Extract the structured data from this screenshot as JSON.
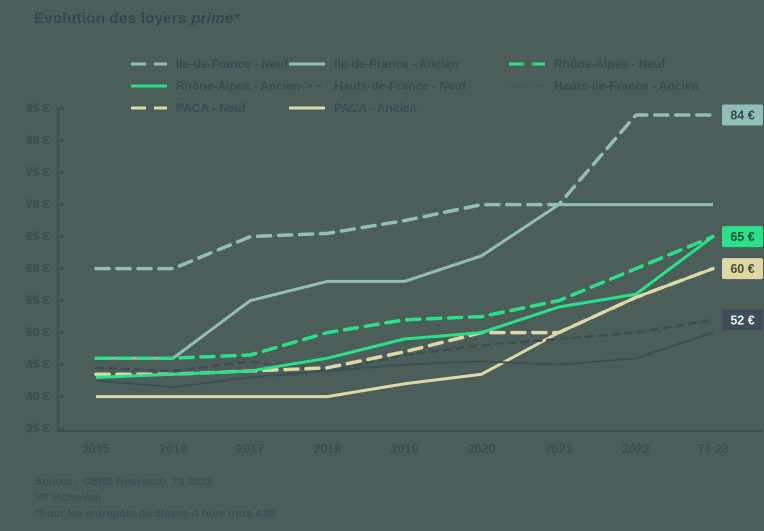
{
  "title": {
    "main": "Evolution des loyers ",
    "emphasis": "prime*"
  },
  "colors": {
    "background": "#4b5e59",
    "title_text": "#35474f",
    "axis": "#3d4e55",
    "tick_text": "#3d4e55",
    "legend_text": "#3a4c54",
    "footer_text": "#3e5058",
    "idf": "#8fbfb6",
    "rhone_alpes": "#2ae188",
    "hauts_de_france": "#3d4e55",
    "paca": "#ded8a4"
  },
  "chart_data": {
    "type": "line",
    "title": "Evolution des loyers prime*",
    "x_categories": [
      "2015",
      "2016",
      "2017",
      "2018",
      "2019",
      "2020",
      "2021",
      "2022",
      "T1 23"
    ],
    "y_tick_labels": [
      "35 €",
      "40 €",
      "45 €",
      "50 €",
      "55 €",
      "60 €",
      "65 €",
      "70 €",
      "75 €",
      "80 €",
      "85 €"
    ],
    "ylim": [
      35,
      85
    ],
    "unit": "€",
    "grid": false,
    "legend_position": "top",
    "series": [
      {
        "name": "Ile-de-France - Neuf",
        "color": "#8fbfb6",
        "line_style": "dashed",
        "values": [
          60,
          60,
          65,
          65.5,
          67.5,
          70,
          70,
          84,
          84
        ],
        "end_label": "84 €",
        "end_label_bg": "#8fbfb6",
        "end_label_fg": "#35474f"
      },
      {
        "name": "Ile-de-France - Ancien",
        "color": "#8fbfb6",
        "line_style": "solid",
        "values": [
          46,
          46,
          55,
          58,
          58,
          62,
          70,
          70,
          70
        ],
        "end_label": null
      },
      {
        "name": "Rhône-Alpes - Neuf",
        "color": "#2ae188",
        "line_style": "dashed",
        "values": [
          46,
          46,
          46.5,
          50,
          52,
          52.5,
          55,
          60,
          65
        ],
        "end_label": null
      },
      {
        "name": "Rhône-Alpes - Ancien",
        "color": "#2ae188",
        "line_style": "solid",
        "values": [
          43,
          43.5,
          44,
          46,
          49,
          50,
          54,
          56,
          65
        ],
        "end_label": "65 €",
        "end_label_bg": "#2ae188",
        "end_label_fg": "#1d4a36"
      },
      {
        "name": "Hauts-de-France - Neuf",
        "color": "#3d4e55",
        "line_style": "short-dash",
        "values": [
          44.5,
          44,
          45.5,
          44,
          46.5,
          48,
          49,
          50,
          52
        ],
        "end_label": "52 €",
        "end_label_bg": "#3d4e55",
        "end_label_fg": "#f2f5f4"
      },
      {
        "name": "Hauts-de-France - Ancien",
        "color": "#3d4e55",
        "line_style": "fine-dot",
        "values": [
          42.5,
          41.5,
          43,
          44,
          45,
          45.5,
          45,
          46,
          50
        ],
        "end_label": null
      },
      {
        "name": "PACA - Neuf",
        "color": "#ded8a4",
        "line_style": "dashed",
        "values": [
          43.5,
          43.5,
          44,
          44.5,
          47,
          50,
          50,
          55.5,
          60
        ],
        "end_label": null
      },
      {
        "name": "PACA - Ancien",
        "color": "#ded8a4",
        "line_style": "solid",
        "values": [
          40,
          40,
          40,
          40,
          42,
          43.5,
          50,
          55.5,
          60
        ],
        "end_label": "60 €",
        "end_label_bg": "#ded8a4",
        "end_label_fg": "#474a33"
      }
    ]
  },
  "footer": {
    "lines": [
      "Source : CBRE Research, T1 2023",
      "HT HC/m²/an",
      "*Pour les entrepôts de classe A hors intra A86"
    ]
  }
}
